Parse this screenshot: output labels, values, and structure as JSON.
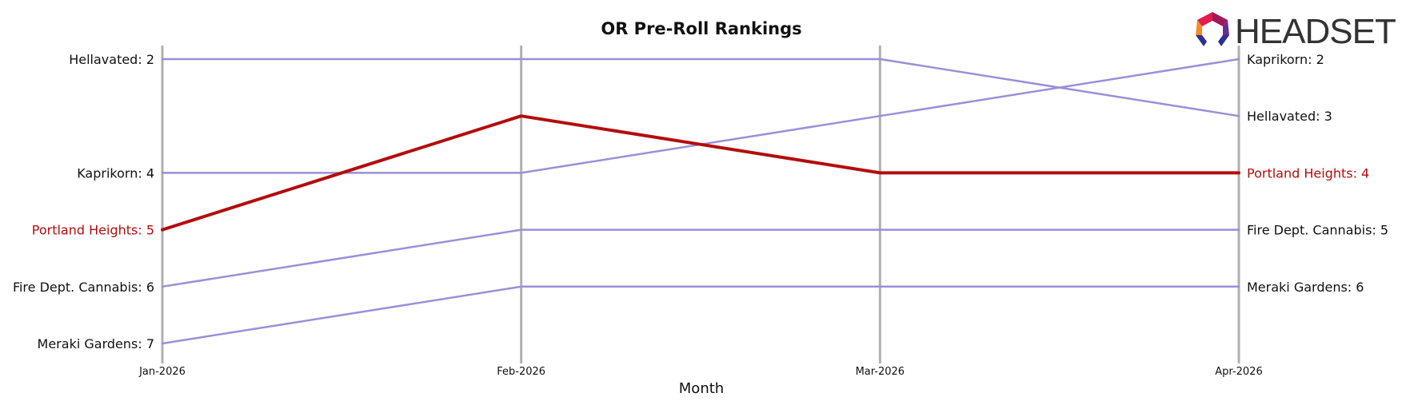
{
  "logo": {
    "text": "HEADSET",
    "colors": [
      "#e31b4f",
      "#a0195a",
      "#f28c28",
      "#2f2f8f",
      "#6a2c91"
    ]
  },
  "chart_data": {
    "type": "line",
    "title": "OR Pre-Roll Rankings",
    "xlabel": "Month",
    "ylabel": "",
    "x": [
      "Jan-2026",
      "Feb-2026",
      "Mar-2026",
      "Apr-2026"
    ],
    "ylim": [
      2,
      7
    ],
    "y_inverted": true,
    "grid": "vertical lines at each month",
    "legend": "none (direct labels at line ends)",
    "series": [
      {
        "name": "Hellavated",
        "values": [
          2,
          2,
          2,
          3
        ],
        "color": "#9b8fd8",
        "highlight": false
      },
      {
        "name": "Kaprikorn",
        "values": [
          4,
          4,
          3,
          2
        ],
        "color": "#9b8fd8",
        "highlight": false
      },
      {
        "name": "Portland Heights",
        "values": [
          5,
          3,
          4,
          4
        ],
        "color": "#b30c0c",
        "highlight": true
      },
      {
        "name": "Fire Dept. Cannabis",
        "values": [
          6,
          5,
          5,
          5
        ],
        "color": "#9b8fd8",
        "highlight": false
      },
      {
        "name": "Meraki Gardens",
        "values": [
          7,
          6,
          6,
          6
        ],
        "color": "#9b8fd8",
        "highlight": false
      }
    ],
    "start_labels": [
      "Hellavated: 2",
      "Kaprikorn: 4",
      "Portland Heights: 5",
      "Fire Dept. Cannabis: 6",
      "Meraki Gardens: 7"
    ],
    "end_labels": [
      "Kaprikorn: 2",
      "Hellavated: 3",
      "Portland Heights: 4",
      "Fire Dept. Cannabis: 5",
      "Meraki Gardens: 6"
    ]
  }
}
